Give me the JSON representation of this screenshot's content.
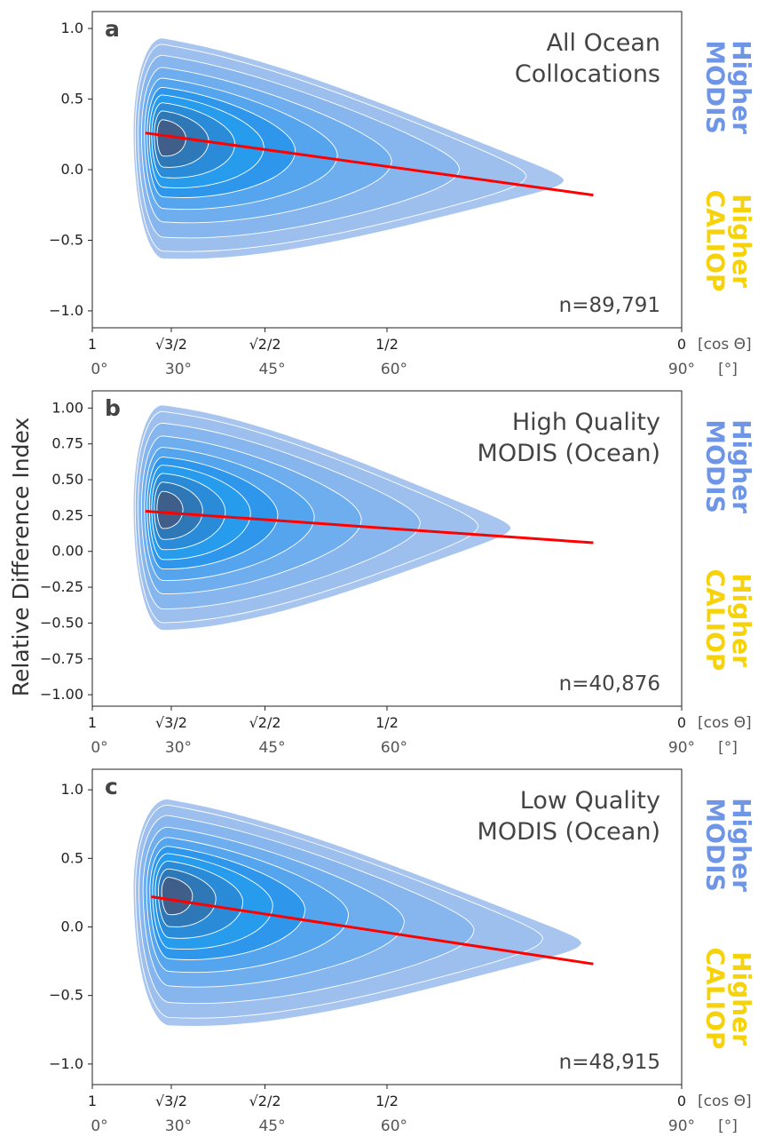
{
  "figure": {
    "ylabel": "Relative Difference Index",
    "side_labels": {
      "higher_modis": "Higher\nMODIS",
      "higher_caliop": "Higher\nCALIOP"
    },
    "colors": {
      "higher_modis": "#6f96e6",
      "higher_caliop": "#f5d20a",
      "regression": "#ff0000",
      "kde_outer": "#a7c5ee",
      "kde_mid": "#5aa6ee",
      "kde_inner": "#2e97ec",
      "kde_core": "#3f5f8a",
      "contour_line": "#ffffff"
    },
    "x_axis": {
      "cos_ticks": [
        {
          "value": 1,
          "label": "1"
        },
        {
          "value": 0.866,
          "label": "√3/2"
        },
        {
          "value": 0.707,
          "label": "√2/2"
        },
        {
          "value": 0.5,
          "label": "1/2"
        },
        {
          "value": 0,
          "label": "0"
        }
      ],
      "deg_ticks": [
        {
          "value": 1,
          "label": "0°"
        },
        {
          "value": 0.866,
          "label": "30°"
        },
        {
          "value": 0.707,
          "label": "45°"
        },
        {
          "value": 0.5,
          "label": "60°"
        },
        {
          "value": 0,
          "label": "90°"
        }
      ],
      "cos_unit": "[cos Θ]",
      "deg_unit": "[°]"
    }
  },
  "chart_data": [
    {
      "type": "kde_contour_with_regression",
      "panel": "a",
      "title": "All Ocean\nCollocations",
      "count": "n=89,791",
      "xlim": [
        1,
        0
      ],
      "ylim": [
        -1.12,
        1.12
      ],
      "yticks": [
        -1.0,
        -0.5,
        0.0,
        0.5,
        1.0
      ],
      "ytick_labels": [
        "−1.0",
        "−0.5",
        "0.0",
        "0.5",
        "1.0"
      ],
      "regression": {
        "x": [
          0.91,
          0.15
        ],
        "y": [
          0.26,
          -0.18
        ]
      },
      "density_peak": {
        "x": 0.88,
        "y": 0.24
      },
      "outer_extent": {
        "x": [
          0.93,
          0.2
        ],
        "y": [
          -0.63,
          0.93
        ]
      }
    },
    {
      "type": "kde_contour_with_regression",
      "panel": "b",
      "title": "High Quality\nMODIS (Ocean)",
      "count": "n=40,876",
      "xlim": [
        1,
        0
      ],
      "ylim": [
        -1.08,
        1.12
      ],
      "yticks": [
        -1.0,
        -0.75,
        -0.5,
        -0.25,
        0.0,
        0.25,
        0.5,
        0.75,
        1.0
      ],
      "ytick_labels": [
        "−1.00",
        "−0.75",
        "−0.50",
        "−0.25",
        "0.00",
        "0.25",
        "0.50",
        "0.75",
        "1.00"
      ],
      "regression": {
        "x": [
          0.91,
          0.15
        ],
        "y": [
          0.28,
          0.06
        ]
      },
      "density_peak": {
        "x": 0.88,
        "y": 0.3
      },
      "outer_extent": {
        "x": [
          0.93,
          0.29
        ],
        "y": [
          -0.55,
          1.02
        ]
      }
    },
    {
      "type": "kde_contour_with_regression",
      "panel": "c",
      "title": "Low Quality\nMODIS (Ocean)",
      "count": "n=48,915",
      "xlim": [
        1,
        0
      ],
      "ylim": [
        -1.15,
        1.15
      ],
      "yticks": [
        -1.0,
        -0.5,
        0.0,
        0.5,
        1.0
      ],
      "ytick_labels": [
        "−1.0",
        "−0.5",
        "0.0",
        "0.5",
        "1.0"
      ],
      "regression": {
        "x": [
          0.9,
          0.15
        ],
        "y": [
          0.22,
          -0.27
        ]
      },
      "density_peak": {
        "x": 0.87,
        "y": 0.25
      },
      "outer_extent": {
        "x": [
          0.93,
          0.17
        ],
        "y": [
          -0.72,
          0.93
        ]
      }
    }
  ]
}
